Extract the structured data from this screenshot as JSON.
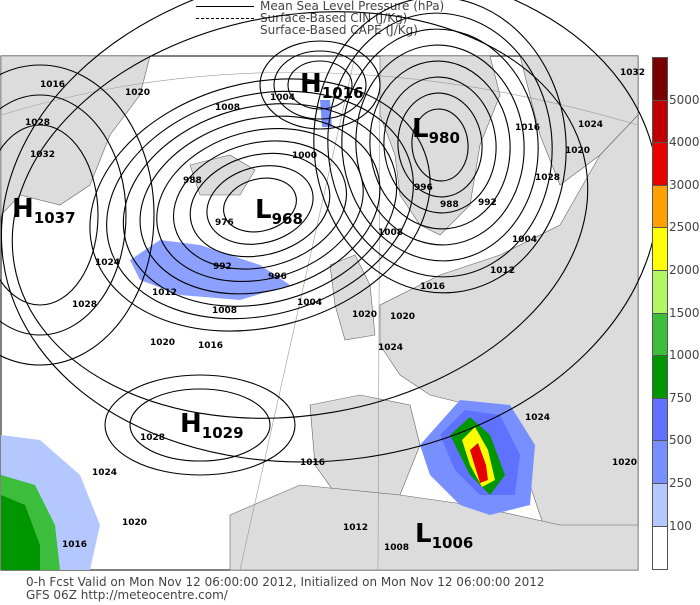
{
  "legend": {
    "mslp": "Mean Sea Level Pressure (hPa)",
    "cin": "Surface-Based CIN (J/Kg)",
    "cape": "Surface-Based CAPE (J/Kg)"
  },
  "colorbar": {
    "colors": [
      "#780000",
      "#c00000",
      "#e60000",
      "#ff9f00",
      "#ffff00",
      "#b4f564",
      "#3cbe3c",
      "#009600",
      "#6070ff",
      "#7890ff",
      "#b4c8ff",
      "#ffffff"
    ],
    "labels": [
      "5000",
      "4000",
      "3000",
      "2500",
      "2000",
      "1500",
      "1000",
      "750",
      "500",
      "250",
      "100"
    ]
  },
  "centers": [
    {
      "type": "H",
      "value": "1016"
    },
    {
      "type": "L",
      "value": "980"
    },
    {
      "type": "L",
      "value": "968"
    },
    {
      "type": "H",
      "value": "1037"
    },
    {
      "type": "H",
      "value": "1029"
    },
    {
      "type": "L",
      "value": "1006"
    }
  ],
  "isobar_labels": [
    "1016",
    "1020",
    "1028",
    "1032",
    "1024",
    "1028",
    "1020",
    "1008",
    "1004",
    "1000",
    "976",
    "988",
    "992",
    "996",
    "1012",
    "1008",
    "1004",
    "1016",
    "1008",
    "996",
    "988",
    "992",
    "1004",
    "1016",
    "1020",
    "1024",
    "1028",
    "1032",
    "1012",
    "1016",
    "1020",
    "1024",
    "1016",
    "1028",
    "1024",
    "1020",
    "1016",
    "1020",
    "1012",
    "1008",
    "1024",
    "1020"
  ],
  "footer": {
    "line1": "0-h Fcst Valid on Mon Nov 12 06:00:00 2012, Initialized on Mon Nov 12 06:00:00 2012",
    "line2": "GFS 06Z http://meteocentre.com/"
  }
}
